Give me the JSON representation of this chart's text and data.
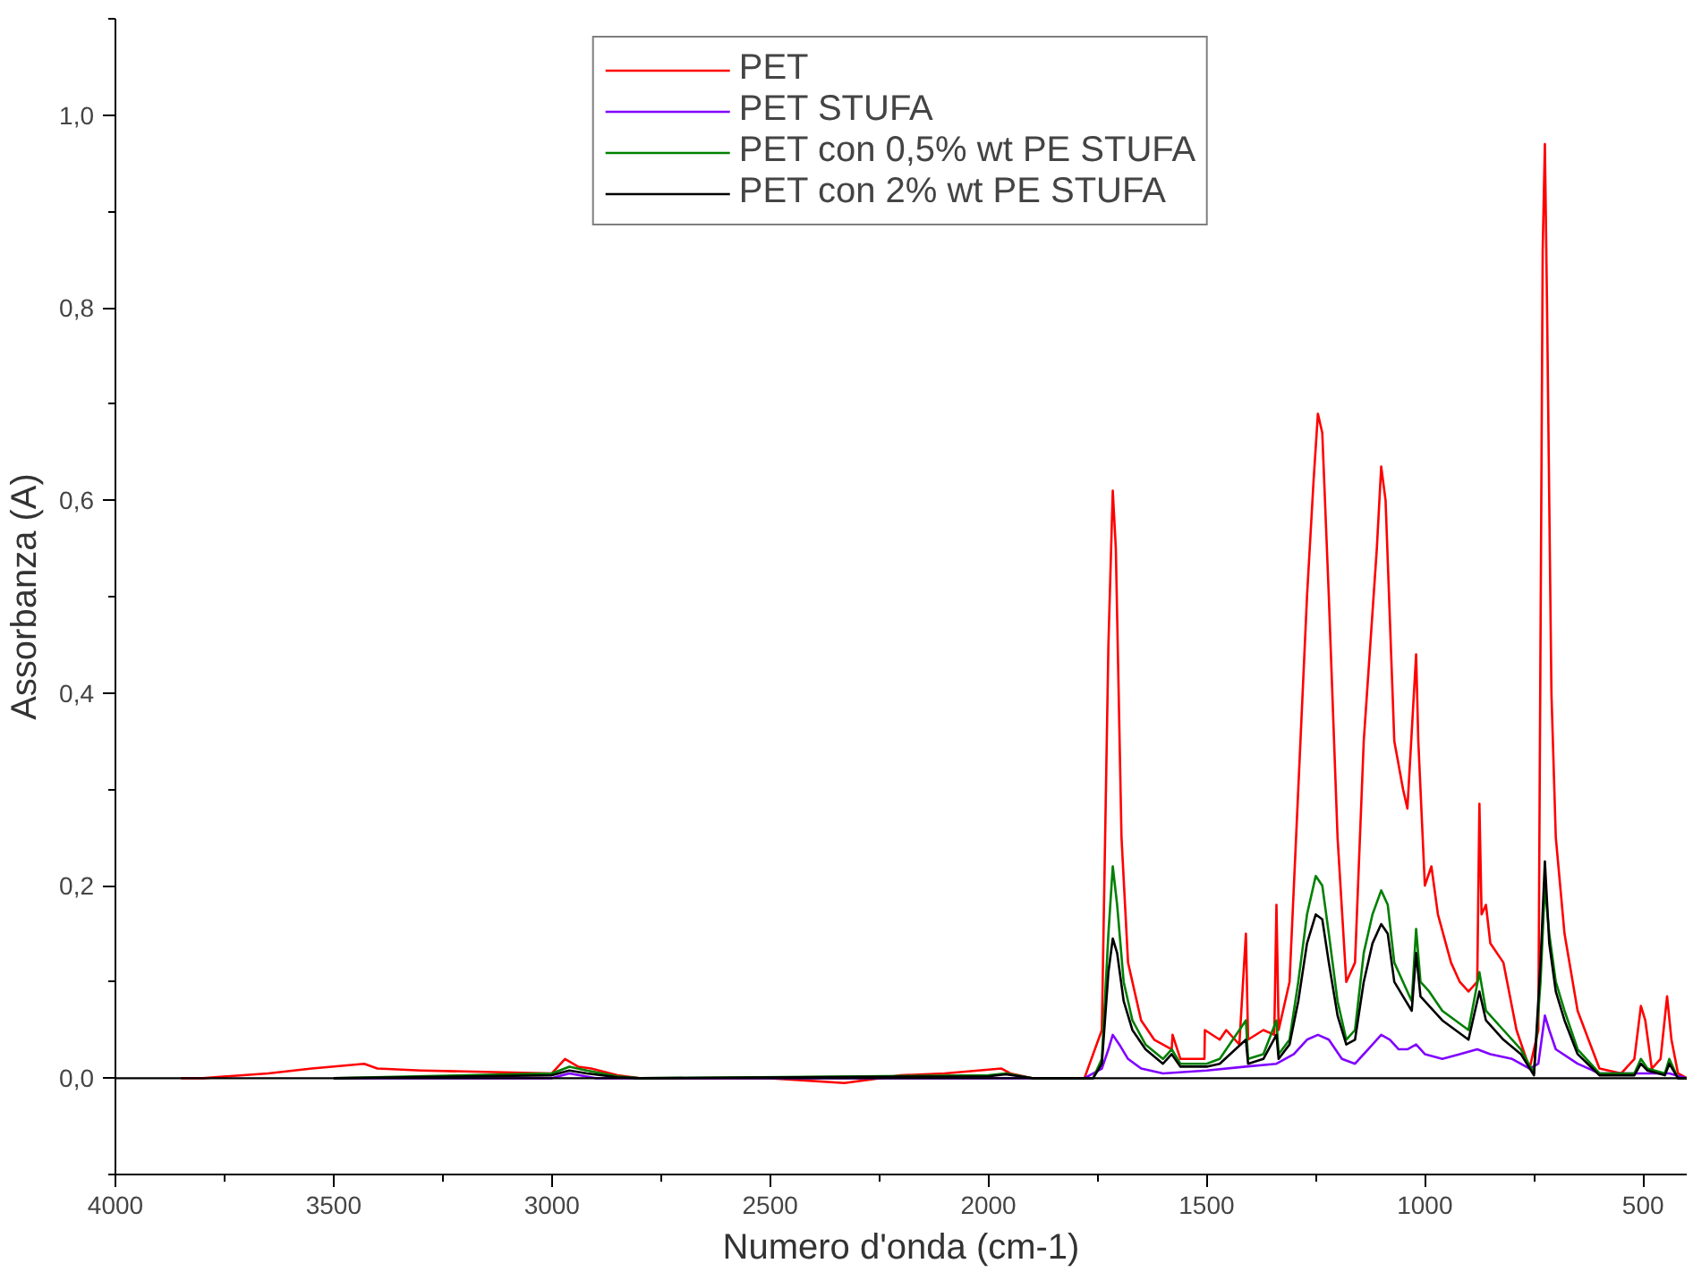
{
  "chart_data": {
    "type": "line",
    "xlabel": "Numero d'onda (cm-1)",
    "ylabel": "Assorbanza (A)",
    "xlim": [
      4000,
      400
    ],
    "ylim": [
      -0.1,
      1.1
    ],
    "xticks": [
      4000,
      3500,
      3000,
      2500,
      2000,
      1500,
      1000,
      500,
      {
        "value": 3750,
        "label": null
      },
      {
        "value": 3250,
        "label": null
      },
      {
        "value": 2750,
        "label": null
      },
      {
        "value": 2250,
        "label": null
      },
      {
        "value": 1750,
        "label": null
      },
      {
        "value": 1250,
        "label": null
      },
      {
        "value": 750,
        "label": null
      }
    ],
    "yticks": [
      {
        "value": 0.0,
        "label": "0,0"
      },
      {
        "value": 0.2,
        "label": "0,2"
      },
      {
        "value": 0.4,
        "label": "0,4"
      },
      {
        "value": 0.6,
        "label": "0,6"
      },
      {
        "value": 0.8,
        "label": "0,8"
      },
      {
        "value": 1.0,
        "label": "1,0"
      },
      {
        "value": -0.1,
        "label": null
      },
      {
        "value": 0.1,
        "label": null
      },
      {
        "value": 0.3,
        "label": null
      },
      {
        "value": 0.5,
        "label": null
      },
      {
        "value": 0.7,
        "label": null
      },
      {
        "value": 0.9,
        "label": null
      },
      {
        "value": 1.1,
        "label": null
      }
    ],
    "grid": false,
    "legend": "top",
    "marker": "none",
    "line_style": "solid",
    "ref_lines": [
      {
        "axis": "y",
        "value": 0,
        "color": "#000000"
      }
    ],
    "series": [
      {
        "name": "PET",
        "color": "#ff0000",
        "x": [
          3850,
          3800,
          3650,
          3550,
          3430,
          3400,
          3300,
          3000,
          2970,
          2940,
          2910,
          2850,
          2800,
          2500,
          2330,
          2200,
          2100,
          1970,
          1950,
          1900,
          1780,
          1740,
          1725,
          1715,
          1708,
          1695,
          1680,
          1650,
          1620,
          1580,
          1578,
          1560,
          1505,
          1504,
          1470,
          1455,
          1425,
          1410,
          1405,
          1370,
          1345,
          1340,
          1335,
          1310,
          1290,
          1270,
          1255,
          1245,
          1235,
          1220,
          1200,
          1180,
          1160,
          1140,
          1125,
          1110,
          1100,
          1090,
          1070,
          1050,
          1040,
          1020,
          1015,
          1000,
          985,
          970,
          940,
          920,
          900,
          880,
          875,
          870,
          860,
          850,
          820,
          790,
          760,
          740,
          730,
          725,
          720,
          710,
          700,
          680,
          650,
          600,
          550,
          520,
          505,
          495,
          480,
          460,
          445,
          435,
          420,
          400
        ],
        "values": [
          0,
          0,
          0.005,
          0.01,
          0.015,
          0.01,
          0.008,
          0.005,
          0.02,
          0.012,
          0.01,
          0.003,
          0,
          0,
          -0.005,
          0.003,
          0.005,
          0.01,
          0.005,
          0,
          0,
          0.05,
          0.45,
          0.61,
          0.55,
          0.25,
          0.12,
          0.06,
          0.04,
          0.03,
          0.045,
          0.02,
          0.02,
          0.05,
          0.04,
          0.05,
          0.035,
          0.15,
          0.04,
          0.05,
          0.045,
          0.18,
          0.05,
          0.1,
          0.3,
          0.5,
          0.62,
          0.69,
          0.67,
          0.5,
          0.25,
          0.1,
          0.12,
          0.35,
          0.45,
          0.55,
          0.635,
          0.6,
          0.35,
          0.3,
          0.28,
          0.44,
          0.35,
          0.2,
          0.22,
          0.17,
          0.12,
          0.1,
          0.09,
          0.1,
          0.285,
          0.17,
          0.18,
          0.14,
          0.12,
          0.05,
          0.01,
          0.05,
          0.86,
          0.97,
          0.8,
          0.4,
          0.25,
          0.15,
          0.07,
          0.01,
          0.005,
          0.02,
          0.075,
          0.06,
          0.01,
          0.02,
          0.085,
          0.04,
          0.005,
          0
        ]
      },
      {
        "name": "PET STUFA",
        "color": "#8000ff",
        "x": [
          3500,
          3000,
          2960,
          2900,
          2850,
          2800,
          2000,
          1780,
          1740,
          1725,
          1715,
          1700,
          1680,
          1650,
          1600,
          1500,
          1410,
          1340,
          1300,
          1270,
          1245,
          1220,
          1190,
          1160,
          1130,
          1100,
          1080,
          1060,
          1040,
          1020,
          1000,
          960,
          920,
          880,
          850,
          800,
          760,
          740,
          725,
          715,
          700,
          650,
          600,
          500,
          440,
          400
        ],
        "values": [
          0,
          0,
          0.005,
          null,
          null,
          0,
          0,
          0,
          0.01,
          0.03,
          0.045,
          0.035,
          0.02,
          0.01,
          0.005,
          0.008,
          0.012,
          0.015,
          0.025,
          0.04,
          0.045,
          0.04,
          0.02,
          0.015,
          0.03,
          0.045,
          0.04,
          0.03,
          0.03,
          0.035,
          0.025,
          0.02,
          0.025,
          0.03,
          0.025,
          0.02,
          0.01,
          0.015,
          0.065,
          0.05,
          0.03,
          0.015,
          0.005,
          0.005,
          0.005,
          0
        ]
      },
      {
        "name": "PET con 0,5% wt PE STUFA",
        "color": "#008000",
        "x": [
          3500,
          3000,
          2960,
          2920,
          2850,
          2800,
          2000,
          1960,
          1900,
          1760,
          1740,
          1725,
          1715,
          1705,
          1690,
          1670,
          1640,
          1600,
          1580,
          1560,
          1500,
          1470,
          1410,
          1405,
          1370,
          1340,
          1335,
          1310,
          1290,
          1270,
          1250,
          1235,
          1220,
          1200,
          1180,
          1160,
          1140,
          1120,
          1100,
          1085,
          1070,
          1050,
          1030,
          1020,
          1010,
          990,
          960,
          930,
          900,
          875,
          860,
          820,
          780,
          750,
          735,
          725,
          715,
          700,
          680,
          650,
          600,
          520,
          505,
          490,
          450,
          440,
          420,
          400
        ],
        "values": [
          0,
          0.005,
          0.012,
          0.008,
          0.002,
          0,
          0.003,
          0.005,
          0,
          0,
          0.02,
          0.15,
          0.22,
          0.18,
          0.1,
          0.06,
          0.035,
          0.02,
          0.03,
          0.015,
          0.015,
          0.02,
          0.06,
          0.02,
          0.025,
          0.06,
          0.025,
          0.04,
          0.1,
          0.17,
          0.21,
          0.2,
          0.15,
          0.08,
          0.04,
          0.05,
          0.13,
          0.17,
          0.195,
          0.18,
          0.12,
          0.1,
          0.08,
          0.155,
          0.1,
          0.09,
          0.07,
          0.06,
          0.05,
          0.11,
          0.07,
          0.05,
          0.03,
          0.005,
          0.1,
          0.2,
          0.15,
          0.1,
          0.07,
          0.03,
          0.005,
          0.005,
          0.02,
          0.01,
          0.005,
          0.02,
          0,
          0
        ]
      },
      {
        "name": "PET con 2% wt PE STUFA",
        "color": "#000000",
        "x": [
          3500,
          3000,
          2960,
          2920,
          2850,
          2800,
          2000,
          1960,
          1900,
          1760,
          1740,
          1725,
          1715,
          1705,
          1690,
          1670,
          1640,
          1600,
          1580,
          1560,
          1500,
          1470,
          1410,
          1405,
          1370,
          1340,
          1335,
          1310,
          1290,
          1270,
          1250,
          1235,
          1220,
          1200,
          1180,
          1160,
          1140,
          1120,
          1100,
          1085,
          1070,
          1050,
          1030,
          1020,
          1010,
          990,
          960,
          930,
          900,
          875,
          860,
          820,
          780,
          750,
          735,
          725,
          715,
          700,
          680,
          650,
          600,
          520,
          505,
          490,
          450,
          440,
          420,
          400
        ],
        "values": [
          0,
          0.003,
          0.008,
          0.005,
          0.001,
          0,
          0.002,
          0.004,
          0,
          0,
          0.015,
          0.11,
          0.145,
          0.13,
          0.08,
          0.05,
          0.03,
          0.015,
          0.025,
          0.012,
          0.012,
          0.015,
          0.04,
          0.015,
          0.02,
          0.045,
          0.02,
          0.035,
          0.08,
          0.14,
          0.17,
          0.165,
          0.12,
          0.065,
          0.035,
          0.04,
          0.1,
          0.14,
          0.16,
          0.15,
          0.1,
          0.085,
          0.07,
          0.13,
          0.085,
          0.075,
          0.06,
          0.05,
          0.04,
          0.09,
          0.06,
          0.04,
          0.025,
          0.003,
          0.12,
          0.225,
          0.14,
          0.09,
          0.06,
          0.025,
          0.003,
          0.003,
          0.015,
          0.008,
          0.003,
          0.015,
          0,
          0
        ]
      }
    ]
  }
}
